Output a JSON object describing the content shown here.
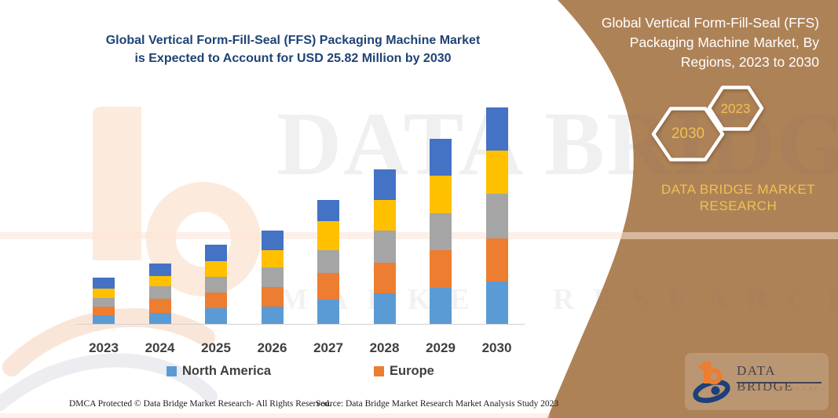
{
  "colors": {
    "chart_title": "#1e4376",
    "axis_text": "#3f3f3f",
    "axis_line": "#d2d2d2",
    "footer_text": "#1b1b1b",
    "banner_bg": "#ae8257",
    "banner_text": "#ffffff",
    "banner_accent": "#eec153",
    "watermark_peach": "#fcebdd"
  },
  "chart": {
    "title_lines": [
      "Global Vertical Form-Fill-Seal (FFS) Packaging Machine Market",
      "is Expected to Account for USD 25.82  Million by 2030"
    ]
  },
  "chart_data": {
    "type": "bar",
    "stacked": true,
    "unit": "USD Million",
    "title": "Global Vertical Form-Fill-Seal (FFS) Packaging Machine Market is Expected to Account for USD 25.82 Million by 2030",
    "categories": [
      "2023",
      "2024",
      "2025",
      "2026",
      "2027",
      "2028",
      "2029",
      "2030"
    ],
    "series": [
      {
        "id": "north-america",
        "name": "North America",
        "color": "#5B9BD5",
        "in_legend": true,
        "values": [
          1.0,
          1.3,
          1.9,
          2.1,
          2.9,
          3.6,
          4.3,
          5.0
        ]
      },
      {
        "id": "europe",
        "name": "Europe",
        "color": "#ED7D31",
        "in_legend": true,
        "values": [
          1.1,
          1.7,
          1.8,
          2.3,
          3.2,
          3.7,
          4.5,
          5.2
        ]
      },
      {
        "id": "series-3",
        "name": "",
        "color": "#A5A5A5",
        "in_legend": false,
        "values": [
          1.0,
          1.5,
          1.9,
          2.3,
          2.7,
          3.8,
          4.4,
          5.3
        ]
      },
      {
        "id": "series-4",
        "name": "",
        "color": "#FFC000",
        "in_legend": false,
        "values": [
          1.1,
          1.2,
          1.9,
          2.1,
          3.4,
          3.7,
          4.5,
          5.2
        ]
      },
      {
        "id": "series-5",
        "name": "",
        "color": "#4472C4",
        "in_legend": false,
        "values": [
          1.3,
          1.5,
          1.9,
          2.3,
          2.6,
          3.6,
          4.4,
          5.1
        ]
      }
    ],
    "totals": [
      5.5,
      7.2,
      9.4,
      11.1,
      14.8,
      18.4,
      22.1,
      25.8
    ],
    "stated_value_2030": 25.82,
    "ylim": [
      0,
      26
    ],
    "gridlines": false,
    "y_axis_shown": false,
    "value_labels_shown": false,
    "legend_position": "bottom"
  },
  "legend": {
    "items": [
      {
        "label": "North America",
        "color": "#5B9BD5"
      },
      {
        "label": "Europe",
        "color": "#ED7D31"
      }
    ]
  },
  "banner": {
    "title_lines": [
      "Global Vertical Form-Fill-Seal (FFS)",
      "Packaging Machine Market, By",
      "Regions, 2023 to 2030"
    ],
    "hexagons": [
      {
        "label": "2030"
      },
      {
        "label": "2023"
      }
    ],
    "brand_lines": [
      "DATA BRIDGE MARKET",
      "RESEARCH"
    ]
  },
  "logo": {
    "title": "DATA BRIDGE",
    "subtitle": "MARKET RESEARCH"
  },
  "footer": {
    "dmca": "DMCA Protected © Data Bridge Market Research-  All Rights Reserved.",
    "source": "Source: Data Bridge Market Research  Market Analysis Study 2023"
  },
  "watermark": {
    "row1": "DATA BRIDGE",
    "row2": "MARKET RESEARCH"
  }
}
